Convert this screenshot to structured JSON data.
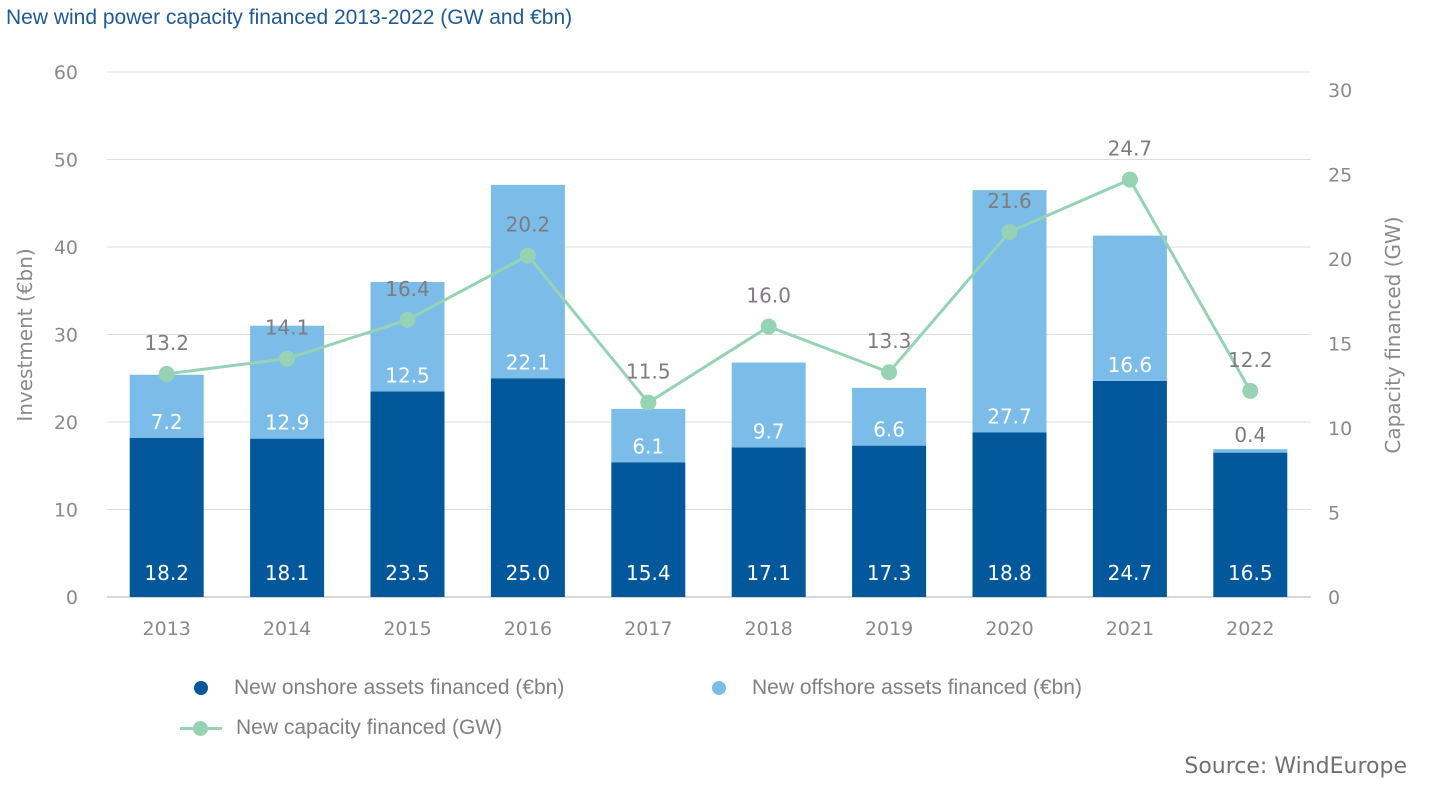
{
  "title": "New wind power capacity financed 2013-2022 (GW and €bn)",
  "source": "Source: WindEurope",
  "colors": {
    "onshore": "#02589a",
    "offshore": "#7bbde8",
    "capacity": "#96d2b4",
    "grid": "#dddddd",
    "title": "#1f5a95"
  },
  "chart_data": {
    "type": "bar",
    "stacked": true,
    "title": "New wind power capacity financed 2013-2022 (GW and €bn)",
    "categories": [
      "2013",
      "2014",
      "2015",
      "2016",
      "2017",
      "2018",
      "2019",
      "2020",
      "2021",
      "2022"
    ],
    "series": [
      {
        "name": "New onshore assets financed (€bn)",
        "type": "bar",
        "axis": "left",
        "values": [
          18.2,
          18.1,
          23.5,
          25.0,
          15.4,
          17.1,
          17.3,
          18.8,
          24.7,
          16.5
        ]
      },
      {
        "name": "New offshore assets financed (€bn)",
        "type": "bar",
        "axis": "left",
        "values": [
          7.2,
          12.9,
          12.5,
          22.1,
          6.1,
          9.7,
          6.6,
          27.7,
          16.6,
          0.4
        ]
      },
      {
        "name": "New capacity financed (GW)",
        "type": "line",
        "axis": "right",
        "values": [
          13.2,
          14.1,
          16.4,
          20.2,
          11.5,
          16.0,
          13.3,
          21.6,
          24.7,
          12.2
        ]
      }
    ],
    "ylabel": "Investment (€bn)",
    "y2label": "Capacity financed (GW)",
    "xlabel": "",
    "ylim": [
      0,
      60
    ],
    "y2lim": [
      0,
      30
    ],
    "yticks": [
      "0",
      "10",
      "20",
      "30",
      "40",
      "50",
      "60"
    ],
    "y2ticks": [
      "0",
      "5",
      "10",
      "15",
      "20",
      "25",
      "30"
    ],
    "grid": true,
    "legend_position": "bottom"
  }
}
